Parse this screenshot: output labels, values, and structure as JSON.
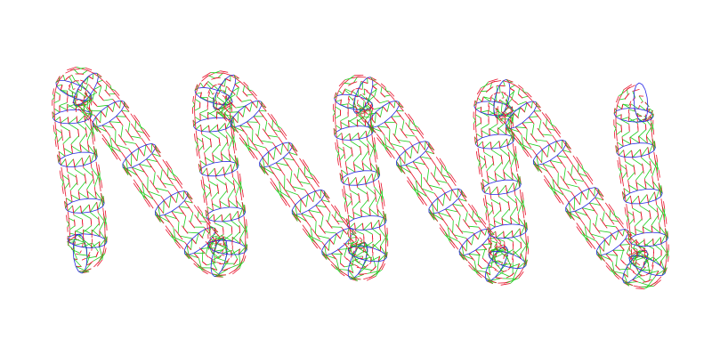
{
  "scene": {
    "background_color": "#ffffff",
    "object": "helical-spring-tube",
    "render_style": "wireframe",
    "visible_coils": 4.5,
    "wire_colors": {
      "longitudinal": "#e8102a",
      "diagonal": "#1fce1f",
      "ring": "#2626e6"
    }
  }
}
